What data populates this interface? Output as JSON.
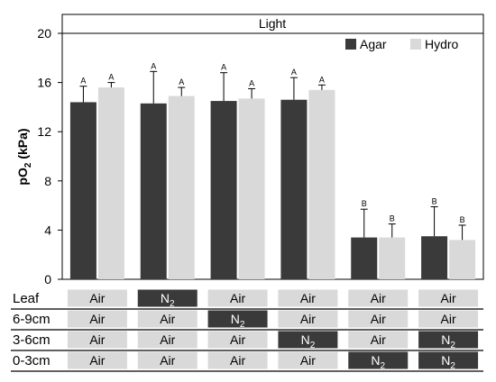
{
  "chart_data": {
    "type": "bar",
    "title": "Light",
    "ylabel_main": "pO",
    "ylabel_sub": "2",
    "ylabel_unit": " (kPa)",
    "ylim": [
      0,
      20
    ],
    "yticks": [
      0,
      4,
      8,
      12,
      16,
      20
    ],
    "legend_position": "top-right",
    "colors": {
      "Agar": "#3a3a3a",
      "Hydro": "#d9d9d9"
    },
    "series": [
      {
        "name": "Agar",
        "values": [
          14.4,
          14.3,
          14.5,
          14.6,
          3.4,
          3.5
        ],
        "errors": [
          1.3,
          2.6,
          2.3,
          1.8,
          2.3,
          2.4
        ],
        "letters": [
          "A",
          "A",
          "A",
          "A",
          "B",
          "B"
        ]
      },
      {
        "name": "Hydro",
        "values": [
          15.6,
          14.9,
          14.7,
          15.4,
          3.4,
          3.2
        ],
        "errors": [
          0.4,
          0.7,
          0.8,
          0.4,
          1.1,
          1.2
        ],
        "letters": [
          "A",
          "A",
          "A",
          "A",
          "B",
          "B"
        ]
      }
    ]
  },
  "treatment_table": {
    "rows": [
      {
        "label": "Leaf",
        "cells": [
          "Air",
          "N2",
          "Air",
          "Air",
          "Air",
          "Air"
        ]
      },
      {
        "label": "6-9cm",
        "cells": [
          "Air",
          "Air",
          "N2",
          "Air",
          "Air",
          "Air"
        ]
      },
      {
        "label": "3-6cm",
        "cells": [
          "Air",
          "Air",
          "Air",
          "N2",
          "Air",
          "N2"
        ]
      },
      {
        "label": "0-3cm",
        "cells": [
          "Air",
          "Air",
          "Air",
          "Air",
          "N2",
          "N2"
        ]
      }
    ],
    "air_fill": "#d9d9d9",
    "n2_fill": "#3a3a3a"
  }
}
